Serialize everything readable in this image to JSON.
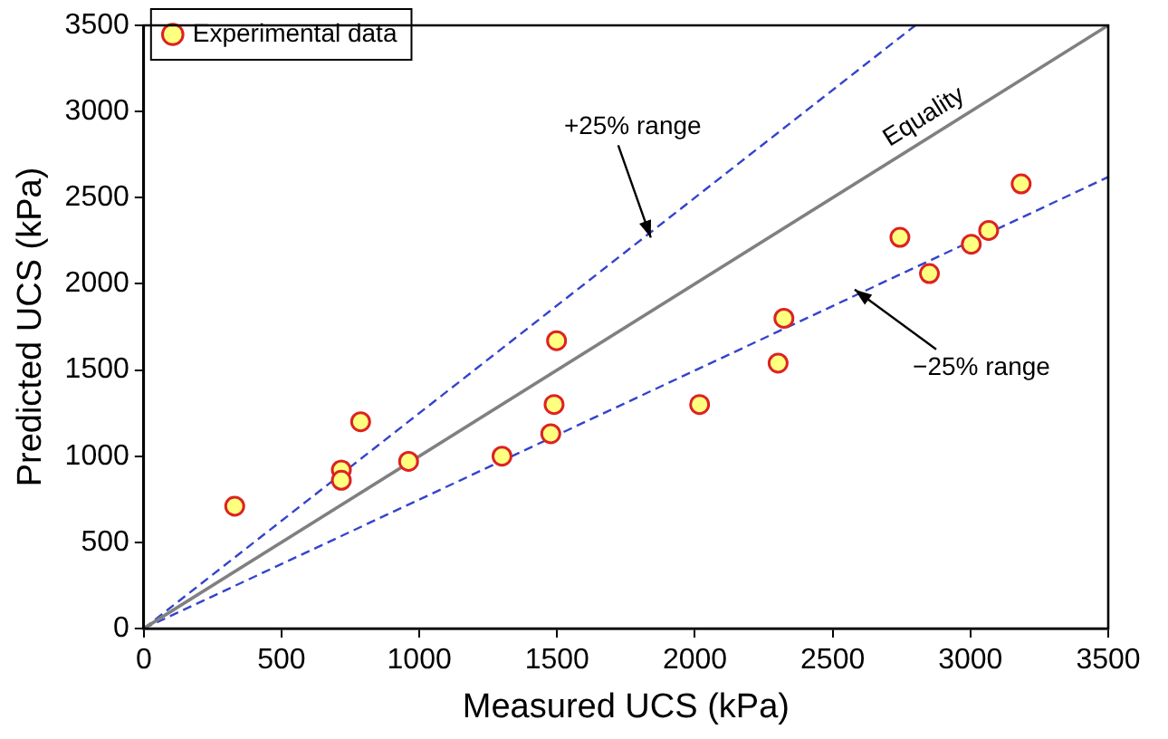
{
  "chart_data": {
    "type": "scatter",
    "xlabel": "Measured UCS (kPa)",
    "ylabel": "Predicted UCS (kPa)",
    "xlim": [
      0,
      3500
    ],
    "ylim": [
      0,
      3500
    ],
    "xticks": [
      0,
      500,
      1000,
      1500,
      2000,
      2500,
      3000,
      3500
    ],
    "yticks": [
      0,
      500,
      1000,
      1500,
      2000,
      2500,
      3000,
      3500
    ],
    "grid": false,
    "legend": "top left",
    "series": [
      {
        "name": "Experimental data",
        "marker": "circle",
        "color": "#ffff80",
        "x": [
          330,
          717,
          717,
          787,
          961,
          1300,
          1477,
          1489,
          1498,
          2017,
          2302,
          2323,
          2744,
          2851,
          3003,
          3066,
          3184
        ],
        "values": [
          710,
          920,
          860,
          1200,
          970,
          1000,
          1130,
          1300,
          1670,
          1300,
          1540,
          1800,
          2270,
          2060,
          2230,
          2310,
          2580
        ]
      },
      {
        "type": "line",
        "marker": "none",
        "line_style": "solid",
        "color": "#808080",
        "x": [
          0,
          3500
        ],
        "values": [
          0,
          3500
        ]
      },
      {
        "type": "line",
        "marker": "none",
        "line_style": "dashed",
        "color": "#3344cc",
        "x": [
          0,
          2800
        ],
        "values": [
          0,
          3500
        ]
      },
      {
        "type": "line",
        "marker": "none",
        "line_style": "dashed",
        "color": "#3344cc",
        "x": [
          0,
          3500
        ],
        "values": [
          0,
          2620
        ]
      }
    ],
    "annotations": [
      {
        "text": "+25% range",
        "x": 1840,
        "y": 2300
      },
      {
        "text": "Equality",
        "x": 2870,
        "y": 2870
      },
      {
        "text": "−25% range",
        "x": 2580,
        "y": 1935
      }
    ]
  }
}
